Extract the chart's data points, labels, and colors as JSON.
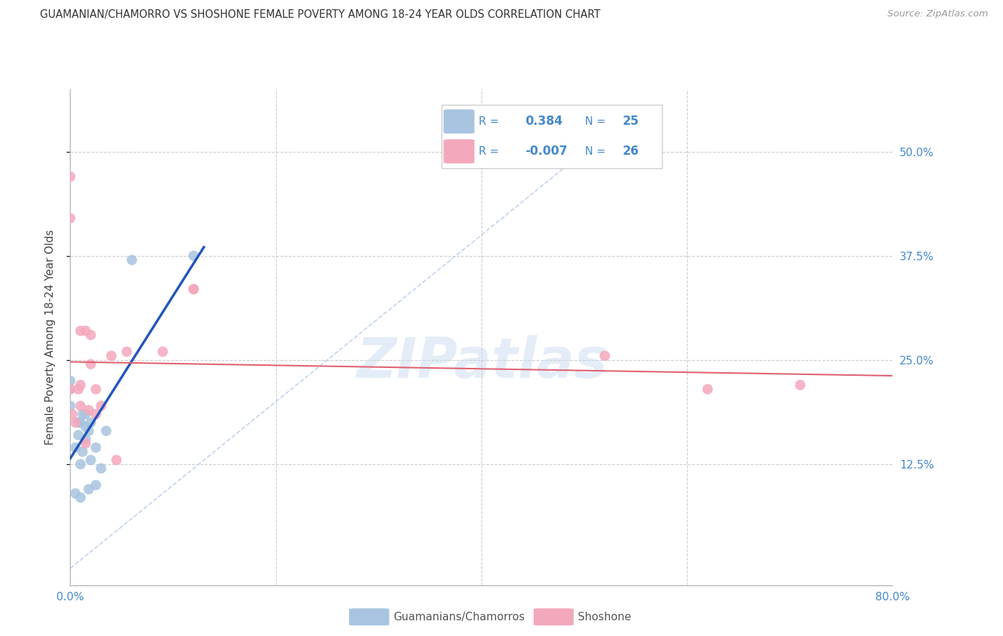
{
  "title": "GUAMANIAN/CHAMORRO VS SHOSHONE FEMALE POVERTY AMONG 18-24 YEAR OLDS CORRELATION CHART",
  "source": "Source: ZipAtlas.com",
  "ylabel": "Female Poverty Among 18-24 Year Olds",
  "xlim": [
    0.0,
    0.8
  ],
  "ylim": [
    -0.02,
    0.575
  ],
  "yticks": [
    0.125,
    0.25,
    0.375,
    0.5
  ],
  "ytick_labels": [
    "12.5%",
    "25.0%",
    "37.5%",
    "50.0%"
  ],
  "xticks": [
    0.0,
    0.2,
    0.4,
    0.6,
    0.8
  ],
  "xtick_labels": [
    "0.0%",
    "",
    "",
    "",
    "80.0%"
  ],
  "legend_r_blue": "0.384",
  "legend_n_blue": "25",
  "legend_r_pink": "-0.007",
  "legend_n_pink": "26",
  "blue_color": "#a8c4e0",
  "pink_color": "#f4a8bc",
  "trend_blue_color": "#2255bb",
  "trend_pink_color": "#e06070",
  "diag_color": "#b0c8e8",
  "watermark": "ZIPatlas",
  "blue_points_x": [
    0.0,
    0.0,
    0.0,
    0.005,
    0.005,
    0.008,
    0.008,
    0.01,
    0.01,
    0.01,
    0.012,
    0.012,
    0.015,
    0.015,
    0.015,
    0.018,
    0.018,
    0.02,
    0.02,
    0.025,
    0.025,
    0.03,
    0.035,
    0.06,
    0.12
  ],
  "blue_points_y": [
    0.195,
    0.215,
    0.225,
    0.09,
    0.145,
    0.16,
    0.175,
    0.085,
    0.125,
    0.175,
    0.14,
    0.185,
    0.155,
    0.17,
    0.185,
    0.095,
    0.165,
    0.13,
    0.175,
    0.1,
    0.145,
    0.12,
    0.165,
    0.37,
    0.375
  ],
  "pink_points_x": [
    0.0,
    0.0,
    0.0,
    0.002,
    0.005,
    0.008,
    0.01,
    0.01,
    0.01,
    0.015,
    0.015,
    0.018,
    0.02,
    0.02,
    0.025,
    0.025,
    0.03,
    0.04,
    0.045,
    0.055,
    0.09,
    0.12,
    0.12,
    0.52,
    0.62,
    0.71
  ],
  "pink_points_y": [
    0.42,
    0.47,
    0.215,
    0.185,
    0.175,
    0.215,
    0.195,
    0.22,
    0.285,
    0.15,
    0.285,
    0.19,
    0.245,
    0.28,
    0.185,
    0.215,
    0.195,
    0.255,
    0.13,
    0.26,
    0.26,
    0.335,
    0.335,
    0.255,
    0.215,
    0.22
  ]
}
